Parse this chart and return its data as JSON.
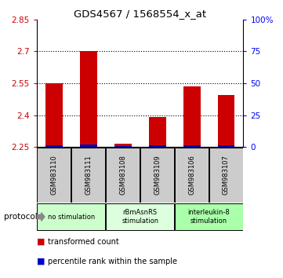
{
  "title": "GDS4567 / 1568554_x_at",
  "samples": [
    "GSM983110",
    "GSM983111",
    "GSM983108",
    "GSM983109",
    "GSM983106",
    "GSM983107"
  ],
  "red_values": [
    2.55,
    2.7,
    2.265,
    2.39,
    2.535,
    2.495
  ],
  "blue_values": [
    2.258,
    2.262,
    2.255,
    2.258,
    2.257,
    2.26
  ],
  "y_min": 2.25,
  "y_max": 2.85,
  "y_ticks": [
    2.25,
    2.4,
    2.55,
    2.7,
    2.85
  ],
  "y_tick_labels": [
    "2.25",
    "2.4",
    "2.55",
    "2.7",
    "2.85"
  ],
  "right_y_ticks": [
    0,
    25,
    50,
    75,
    100
  ],
  "right_y_labels": [
    "0",
    "25",
    "50",
    "75",
    "100%"
  ],
  "groups": [
    {
      "label": "no stimulation",
      "start": 0,
      "end": 1,
      "color": "#ccffcc"
    },
    {
      "label": "rBmAsnRS\nstimulation",
      "start": 2,
      "end": 3,
      "color": "#eeffee"
    },
    {
      "label": "interleukin-8\nstimulation",
      "start": 4,
      "end": 5,
      "color": "#aaffaa"
    }
  ],
  "bar_width": 0.5,
  "red_color": "#cc0000",
  "blue_color": "#0000cc",
  "bg_color": "#ffffff",
  "sample_bg_color": "#cccccc",
  "legend_red": "transformed count",
  "legend_blue": "percentile rank within the sample",
  "protocol_label": "protocol",
  "grid_dotted_at": [
    2.4,
    2.55,
    2.7
  ]
}
